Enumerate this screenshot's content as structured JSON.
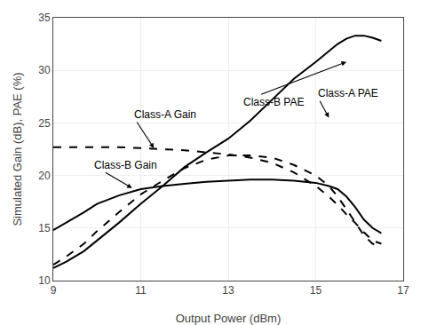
{
  "chart_data": {
    "type": "line",
    "xlabel": "Output Power (dBm)",
    "ylabel": "Simulated Gain (dB), PAE (%)",
    "xlim": [
      9,
      17
    ],
    "ylim": [
      10,
      35
    ],
    "xticks": [
      9,
      11,
      13,
      15,
      17
    ],
    "yticks": [
      10,
      15,
      20,
      25,
      30,
      35
    ],
    "grid": true,
    "series": [
      {
        "color": "#000000",
        "line_style": "solid",
        "x": [
          9.0,
          9.3,
          9.7,
          10.0,
          10.5,
          11.0,
          11.5,
          12.0,
          12.5,
          13.0,
          13.5,
          14.0,
          14.5,
          15.0,
          15.3,
          15.5,
          15.7,
          15.9,
          16.1,
          16.3,
          16.5
        ],
        "values": [
          14.8,
          15.5,
          16.5,
          17.3,
          18.1,
          18.7,
          19.0,
          19.2,
          19.4,
          19.5,
          19.6,
          19.6,
          19.5,
          19.3,
          19.0,
          18.7,
          18.0,
          17.0,
          15.8,
          15.0,
          14.5
        ]
      },
      {
        "color": "#000000",
        "line_style": "dashed",
        "x": [
          9.0,
          9.5,
          10.0,
          10.5,
          11.0,
          11.5,
          12.0,
          12.5,
          13.0,
          13.5,
          14.0,
          14.5,
          15.0,
          15.3,
          15.5,
          15.7,
          15.9,
          16.1,
          16.3,
          16.5
        ],
        "values": [
          22.7,
          22.7,
          22.7,
          22.7,
          22.6,
          22.5,
          22.4,
          22.2,
          22.0,
          21.7,
          21.2,
          20.3,
          19.0,
          18.0,
          17.2,
          16.3,
          15.5,
          14.6,
          13.8,
          13.5
        ]
      },
      {
        "color": "#000000",
        "line_style": "solid",
        "x": [
          9.0,
          9.3,
          9.7,
          10.0,
          10.5,
          11.0,
          11.5,
          12.0,
          12.5,
          13.0,
          13.5,
          14.0,
          14.5,
          15.0,
          15.3,
          15.5,
          15.7,
          15.9,
          16.1,
          16.3,
          16.5
        ],
        "values": [
          11.2,
          11.8,
          12.8,
          13.8,
          15.5,
          17.3,
          19.0,
          20.8,
          22.2,
          23.5,
          25.2,
          27.2,
          29.2,
          30.8,
          31.8,
          32.5,
          33.0,
          33.3,
          33.3,
          33.1,
          32.8
        ]
      },
      {
        "color": "#000000",
        "line_style": "dashed",
        "x": [
          9.0,
          9.3,
          9.7,
          10.0,
          10.5,
          11.0,
          11.5,
          12.0,
          12.5,
          13.0,
          13.5,
          14.0,
          14.5,
          15.0,
          15.3,
          15.5,
          15.7,
          15.9,
          16.1,
          16.3,
          16.5
        ],
        "values": [
          11.5,
          12.3,
          13.5,
          14.7,
          16.5,
          18.2,
          19.5,
          20.7,
          21.5,
          21.9,
          21.9,
          21.7,
          21.0,
          20.0,
          19.0,
          18.0,
          16.8,
          15.5,
          14.3,
          13.5,
          13.2
        ]
      }
    ],
    "annotations": [
      {
        "text": "Class-B PAE",
        "x": 15.7,
        "y": 30.8,
        "text_x": 13.3,
        "text_y": 27.0
      },
      {
        "text": "Class-A Gain",
        "x": 11.3,
        "y": 22.6,
        "text_x": 10.8,
        "text_y": 25.8
      },
      {
        "text": "Class-B Gain",
        "x": 10.8,
        "y": 18.8,
        "text_x": 9.9,
        "text_y": 21.0
      },
      {
        "text": "Class-A PAE",
        "x": 15.3,
        "y": 25.5,
        "text_x": 15.0,
        "text_y": 27.8
      }
    ]
  }
}
